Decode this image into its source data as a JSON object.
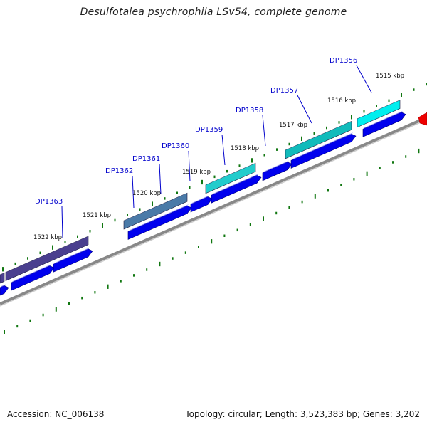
{
  "title": "Desulfotalea psychrophila LSv54, complete genome",
  "footer": {
    "accession": "Accession: NC_006138",
    "summary": "Topology: circular; Length: 3,523,383 bp; Genes: 3,202"
  },
  "colors": {
    "gene_label": "#0000cc",
    "cds_blue": "#0000ee",
    "backbone": "#888888",
    "tick_green": "#117711",
    "feature_red": "#ee0000"
  },
  "scale_labels": [
    {
      "text": "1515 kbp"
    },
    {
      "text": "1516 kbp"
    },
    {
      "text": "1517 kbp"
    },
    {
      "text": "1518 kbp"
    },
    {
      "text": "1519 kbp"
    },
    {
      "text": "1520 kbp"
    },
    {
      "text": "1521 kbp"
    },
    {
      "text": "1522 kbp"
    }
  ],
  "genes": [
    {
      "label": "DP1356",
      "color": "#00eeee"
    },
    {
      "label": "DP1357",
      "color": "#11bbbb"
    },
    {
      "label": "DP1358",
      "color": ""
    },
    {
      "label": "DP1359",
      "color": "#22cccc"
    },
    {
      "label": "DP1360",
      "color": ""
    },
    {
      "label": "DP1361",
      "color": ""
    },
    {
      "label": "DP1362",
      "color": "#4a7aa8"
    },
    {
      "label": "DP1363",
      "color": "#4a3f8f"
    }
  ]
}
